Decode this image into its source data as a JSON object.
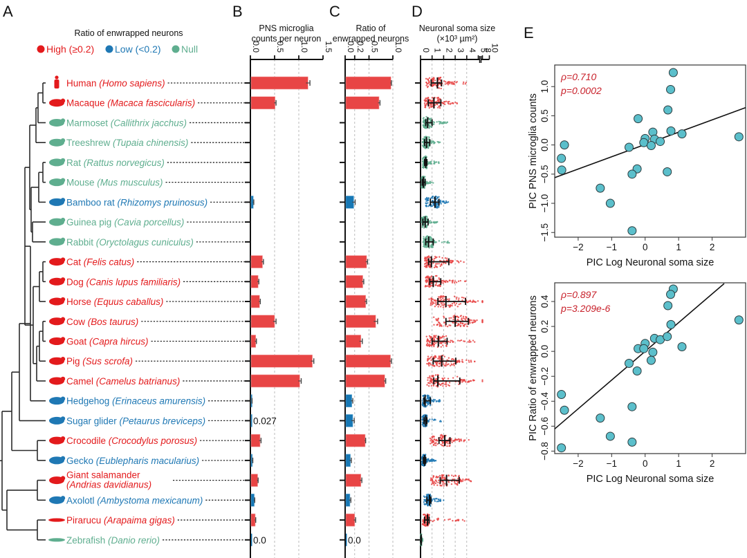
{
  "panels": {
    "A": "A",
    "B": "B",
    "C": "C",
    "D": "D",
    "E": "E"
  },
  "colors": {
    "high": "#e31a1c",
    "low": "#1f78b4",
    "null": "#5fae8f",
    "bar_high": "#e84545",
    "bar_low": "#1778b5",
    "scatter_fill": "#5bbfcb",
    "stat_text": "#c8202a"
  },
  "legend": {
    "title": "Ratio of enwrapped neurons",
    "items": [
      {
        "label": "High (≥0.2)",
        "class": "high"
      },
      {
        "label": "Low (<0.2)",
        "class": "low"
      },
      {
        "label": "Null",
        "class": "null"
      }
    ]
  },
  "species": [
    {
      "common": "Human",
      "latin": "Homo sapiens",
      "class": "high",
      "icon": "human-icon"
    },
    {
      "common": "Macaque",
      "latin": "Macaca fascicularis",
      "class": "high",
      "icon": "monkey-icon"
    },
    {
      "common": "Marmoset",
      "latin": "Callithrix jacchus",
      "class": "null",
      "icon": "marmoset-icon"
    },
    {
      "common": "Treeshrew",
      "latin": "Tupaia chinensis",
      "class": "null",
      "icon": "treeshrew-icon"
    },
    {
      "common": "Rat",
      "latin": "Rattus norvegicus",
      "class": "null",
      "icon": "rat-icon"
    },
    {
      "common": "Mouse",
      "latin": "Mus musculus",
      "class": "null",
      "icon": "mouse-icon"
    },
    {
      "common": "Bamboo rat",
      "latin": "Rhizomys pruinosus",
      "class": "low",
      "icon": "bamboo-rat-icon"
    },
    {
      "common": "Guinea pig",
      "latin": "Cavia porcellus",
      "class": "null",
      "icon": "guinea-pig-icon"
    },
    {
      "common": "Rabbit",
      "latin": "Oryctolagus cuniculus",
      "class": "null",
      "icon": "rabbit-icon"
    },
    {
      "common": "Cat",
      "latin": "Felis catus",
      "class": "high",
      "icon": "cat-icon"
    },
    {
      "common": "Dog",
      "latin": "Canis lupus familiaris",
      "class": "high",
      "icon": "dog-icon"
    },
    {
      "common": "Horse",
      "latin": "Equus caballus",
      "class": "high",
      "icon": "horse-icon"
    },
    {
      "common": "Cow",
      "latin": "Bos taurus",
      "class": "high",
      "icon": "cow-icon"
    },
    {
      "common": "Goat",
      "latin": "Capra hircus",
      "class": "high",
      "icon": "goat-icon"
    },
    {
      "common": "Pig",
      "latin": "Sus scrofa",
      "class": "high",
      "icon": "pig-icon"
    },
    {
      "common": "Camel",
      "latin": "Camelus batrianus",
      "class": "high",
      "icon": "camel-icon"
    },
    {
      "common": "Hedgehog",
      "latin": "Erinaceus amurensis",
      "class": "low",
      "icon": "hedgehog-icon"
    },
    {
      "common": "Sugar glider",
      "latin": "Petaurus breviceps",
      "class": "low",
      "icon": "sugar-glider-icon"
    },
    {
      "common": "Crocodile",
      "latin": "Crocodylus porosus",
      "class": "high",
      "icon": "crocodile-icon"
    },
    {
      "common": "Gecko",
      "latin": "Eublepharis macularius",
      "class": "low",
      "icon": "gecko-icon"
    },
    {
      "common": "Giant salamander",
      "latin": "Andrias davidianus",
      "class": "high",
      "icon": "salamander-icon",
      "two_line": true
    },
    {
      "common": "Axolotl",
      "latin": "Ambystoma mexicanum",
      "class": "low",
      "icon": "axolotl-icon"
    },
    {
      "common": "Pirarucu",
      "latin": "Arapaima gigas",
      "class": "high",
      "icon": "fish-icon"
    },
    {
      "common": "Zebrafish",
      "latin": "Danio rerio",
      "class": "null",
      "icon": "zebrafish-icon"
    }
  ],
  "chart_data": [
    {
      "id": "B",
      "type": "bar",
      "title": "PNS microglia counts per neuron",
      "title_lines": [
        "PNS microglia",
        "counts per neuron"
      ],
      "orientation": "horizontal",
      "xlim": [
        0,
        1.5
      ],
      "ticks": [
        0.0,
        0.5,
        1.0,
        1.5
      ],
      "tick_labels": [
        "0.0",
        "0.5",
        "1.0",
        "1.5"
      ],
      "gridlines": [
        0.5,
        1.0
      ],
      "values": [
        1.19,
        0.51,
        null,
        null,
        null,
        null,
        0.06,
        null,
        null,
        0.25,
        0.16,
        0.19,
        0.5,
        0.11,
        1.28,
        1.02,
        0.03,
        0.027,
        0.2,
        0.04,
        0.15,
        0.08,
        0.1,
        0.0
      ],
      "errors": [
        0.04,
        0.02,
        null,
        null,
        null,
        null,
        0.01,
        null,
        null,
        0.02,
        0.015,
        0.015,
        0.03,
        0.015,
        0.03,
        0.03,
        0.005,
        null,
        0.02,
        0.01,
        0.01,
        0.01,
        0.01,
        null
      ],
      "annotations": [
        {
          "row": 17,
          "text": "0.027"
        },
        {
          "row": 23,
          "text": "0.0"
        }
      ]
    },
    {
      "id": "C",
      "type": "bar",
      "title": "Ratio of enwrapped neurons",
      "title_lines": [
        "Ratio of",
        "enwrapped neurons"
      ],
      "orientation": "horizontal",
      "xlim": [
        0,
        1.0
      ],
      "ticks": [
        0.0,
        0.2,
        0.5,
        1.0
      ],
      "tick_labels": [
        "0.0",
        "0.2",
        "0.5",
        "1.0"
      ],
      "gridlines": [
        0.2,
        0.5,
        1.0
      ],
      "values": [
        0.96,
        0.71,
        null,
        null,
        null,
        null,
        0.18,
        null,
        null,
        0.45,
        0.37,
        0.43,
        0.64,
        0.33,
        0.95,
        0.83,
        0.14,
        0.16,
        0.42,
        0.11,
        0.33,
        0.1,
        0.2,
        0.0
      ],
      "errors": [
        0.01,
        0.02,
        null,
        null,
        null,
        null,
        0.03,
        null,
        null,
        0.02,
        0.02,
        0.02,
        0.04,
        0.03,
        0.02,
        0.02,
        0.02,
        0.03,
        0.01,
        0.02,
        0.02,
        0.02,
        0.02,
        null
      ],
      "annotations": [
        {
          "row": 23,
          "text": "0.0"
        }
      ]
    },
    {
      "id": "D",
      "type": "scatter",
      "subtype": "beeswarm",
      "title": "Neuronal soma size",
      "title_lines": [
        "Neuronal soma size",
        "(×10³ µm²)"
      ],
      "unit": "×10³ µm²",
      "xlim": [
        0,
        10
      ],
      "axis_break": [
        5,
        8
      ],
      "ticks": [
        0,
        1,
        2,
        3,
        4,
        5,
        8,
        10
      ],
      "tick_labels": [
        "0",
        "1",
        "2",
        "3",
        "4",
        "5",
        "8",
        "10"
      ],
      "gridlines": [
        1,
        2,
        3,
        4
      ],
      "summary": [
        {
          "median": 1.46,
          "q1": 0.92,
          "q3": 1.82,
          "max": 4.0
        },
        {
          "median": 1.16,
          "q1": 0.67,
          "q3": 1.76,
          "max": 3.3
        },
        {
          "median": 0.62,
          "q1": 0.45,
          "q3": 1.0,
          "max": 2.5
        },
        {
          "median": 0.52,
          "q1": 0.35,
          "q3": 0.8,
          "max": 1.8
        },
        {
          "median": 0.45,
          "q1": 0.35,
          "q3": 0.55,
          "max": 1.7
        },
        {
          "median": 0.25,
          "q1": 0.15,
          "q3": 0.4,
          "max": 1.1
        },
        {
          "median": 1.25,
          "q1": 0.85,
          "q3": 1.6,
          "max": 2.4
        },
        {
          "median": 0.4,
          "q1": 0.2,
          "q3": 0.65,
          "max": 1.6
        },
        {
          "median": 0.7,
          "q1": 0.45,
          "q3": 1.1,
          "max": 2.7
        },
        {
          "median": 0.94,
          "q1": 0.7,
          "q3": 2.45,
          "max": 4.1
        },
        {
          "median": 1.1,
          "q1": 0.8,
          "q3": 1.75,
          "max": 4.0
        },
        {
          "median": 2.2,
          "q1": 1.5,
          "q3": 3.9,
          "max": 5.8
        },
        {
          "median": 3.0,
          "q1": 2.2,
          "q3": 4.15,
          "max": 5.9
        },
        {
          "median": 1.54,
          "q1": 1.0,
          "q3": 2.3,
          "max": 4.7
        },
        {
          "median": 1.84,
          "q1": 1.1,
          "q3": 3.05,
          "max": 4.7
        },
        {
          "median": 1.5,
          "q1": 1.15,
          "q3": 3.4,
          "max": 5.5
        },
        {
          "median": 0.4,
          "q1": 0.3,
          "q3": 0.85,
          "max": 1.7
        },
        {
          "median": 0.45,
          "q1": 0.3,
          "q3": 0.55,
          "max": 1.8
        },
        {
          "median": 2.1,
          "q1": 1.6,
          "q3": 2.55,
          "max": 4.2
        },
        {
          "median": 0.35,
          "q1": 0.25,
          "q3": 0.45,
          "max": 1.4
        },
        {
          "median": 2.25,
          "q1": 1.7,
          "q3": 3.35,
          "max": 4.5
        },
        {
          "median": 0.78,
          "q1": 0.55,
          "q3": 0.9,
          "max": 2.1
        },
        {
          "median": 0.6,
          "q1": 0.35,
          "q3": 0.75,
          "max": 3.9
        },
        {
          "median": 0.05,
          "q1": 0.02,
          "q3": 0.08,
          "max": 0.2
        }
      ]
    },
    {
      "id": "E-top",
      "type": "scatter",
      "xlabel": "PIC Log Neuronal soma size",
      "ylabel": "PIC PNS microglia counts",
      "xlim": [
        -2.7,
        3.0
      ],
      "ylim": [
        -1.58,
        1.37
      ],
      "xticks": [
        -2,
        -1,
        0,
        1,
        2
      ],
      "xtick_labels": [
        "−2",
        "−1",
        "0",
        "1",
        "2"
      ],
      "yticks": [
        -1.5,
        -1.0,
        -0.5,
        0.0,
        0.5,
        1.0
      ],
      "ytick_labels": [
        "−1.5",
        "−1.0",
        "−0.5",
        "0.0",
        "0.5",
        "1.0"
      ],
      "annotation": [
        "ρ=0.710",
        "p=0.0002"
      ],
      "fit_line": {
        "x": [
          -2.7,
          3.0
        ],
        "y": [
          -0.56,
          0.64
        ]
      },
      "points": [
        [
          0.84,
          1.24
        ],
        [
          0.76,
          0.95
        ],
        [
          0.68,
          0.6
        ],
        [
          -0.21,
          0.45
        ],
        [
          0.23,
          0.22
        ],
        [
          0.77,
          0.24
        ],
        [
          1.1,
          0.19
        ],
        [
          2.8,
          0.14
        ],
        [
          0.0,
          0.11
        ],
        [
          0.28,
          0.1
        ],
        [
          -0.04,
          0.04
        ],
        [
          0.45,
          0.06
        ],
        [
          0.18,
          -0.01
        ],
        [
          -0.48,
          -0.04
        ],
        [
          -2.41,
          0.0
        ],
        [
          -2.5,
          -0.23
        ],
        [
          -2.49,
          -0.43
        ],
        [
          -0.24,
          -0.41
        ],
        [
          -0.39,
          -0.5
        ],
        [
          0.66,
          -0.46
        ],
        [
          -1.34,
          -0.74
        ],
        [
          -1.04,
          -1.0
        ],
        [
          -0.39,
          -1.47
        ]
      ]
    },
    {
      "id": "E-bottom",
      "type": "scatter",
      "xlabel": "PIC Log Neuronal soma size",
      "ylabel": "PIC Ratio of enwrapped neurons",
      "xlim": [
        -2.7,
        3.0
      ],
      "ylim": [
        -0.82,
        0.55
      ],
      "xticks": [
        -2,
        -1,
        0,
        1,
        2
      ],
      "xtick_labels": [
        "−2",
        "−1",
        "0",
        "1",
        "2"
      ],
      "yticks": [
        -0.8,
        -0.6,
        -0.4,
        -0.2,
        0.0,
        0.2,
        0.4
      ],
      "ytick_labels": [
        "−0.8",
        "−0.6",
        "−0.4",
        "−0.2",
        "0.0",
        "0.2",
        "0.4"
      ],
      "annotation": [
        "ρ=0.897",
        "p=3.209e-6"
      ],
      "fit_line": {
        "x": [
          -2.7,
          2.36
        ],
        "y": [
          -0.622,
          0.544
        ]
      },
      "points": [
        [
          0.84,
          0.5
        ],
        [
          0.76,
          0.457
        ],
        [
          0.68,
          0.367
        ],
        [
          2.8,
          0.252
        ],
        [
          0.77,
          0.215
        ],
        [
          0.28,
          0.104
        ],
        [
          0.45,
          0.094
        ],
        [
          0.66,
          0.119
        ],
        [
          0.0,
          0.063
        ],
        [
          -0.21,
          0.022
        ],
        [
          -0.04,
          0.022
        ],
        [
          0.23,
          -0.007
        ],
        [
          1.1,
          0.037
        ],
        [
          0.18,
          -0.072
        ],
        [
          -0.48,
          -0.096
        ],
        [
          -0.24,
          -0.157
        ],
        [
          -2.5,
          -0.346
        ],
        [
          -2.41,
          -0.472
        ],
        [
          -0.39,
          -0.444
        ],
        [
          -1.34,
          -0.535
        ],
        [
          -1.04,
          -0.681
        ],
        [
          -0.39,
          -0.728
        ],
        [
          -2.5,
          -0.774
        ]
      ]
    }
  ]
}
